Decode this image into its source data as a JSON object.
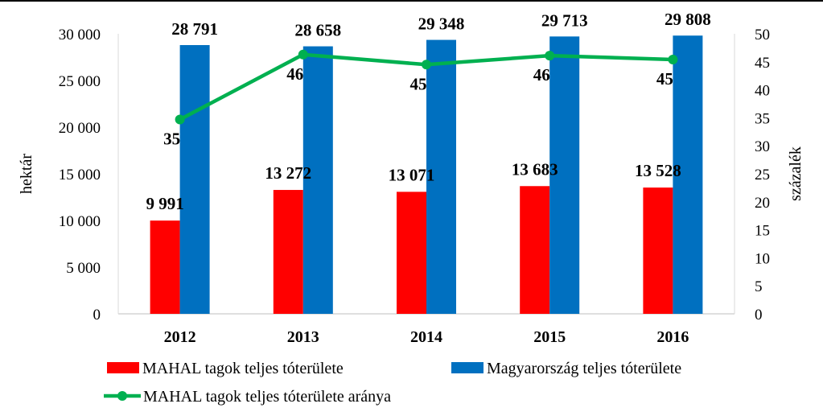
{
  "chart_data": {
    "type": "bar",
    "categories": [
      "2012",
      "2013",
      "2014",
      "2015",
      "2016"
    ],
    "series": [
      {
        "name": "MAHAL tagok teljes tóterülete",
        "kind": "bar",
        "axis": "left",
        "color": "#ff0000",
        "values": [
          9991,
          13272,
          13071,
          13683,
          13528
        ],
        "labels": [
          "9 991",
          "13 272",
          "13 071",
          "13 683",
          "13 528"
        ]
      },
      {
        "name": "Magyarország teljes tóterülete",
        "kind": "bar",
        "axis": "left",
        "color": "#0070c0",
        "values": [
          28791,
          28658,
          29348,
          29713,
          29808
        ],
        "labels": [
          "28 791",
          "28 658",
          "29 348",
          "29 713",
          "29 808"
        ]
      },
      {
        "name": "MAHAL tagok teljes tóterülete aránya",
        "kind": "line",
        "axis": "right",
        "color": "#00b050",
        "values": [
          34.7,
          46.3,
          44.5,
          46.1,
          45.4
        ],
        "labels": [
          "35",
          "46",
          "45",
          "46",
          "45"
        ]
      }
    ],
    "ylabel": "hektár",
    "y2label": "százalék",
    "ylim": [
      0,
      30000
    ],
    "y2lim": [
      0,
      50
    ],
    "yticks": [
      "0",
      "5 000",
      "10 000",
      "15 000",
      "20 000",
      "25 000",
      "30 000"
    ],
    "y2ticks": [
      "0",
      "5",
      "10",
      "15",
      "20",
      "25",
      "30",
      "35",
      "40",
      "45",
      "50"
    ],
    "grid": false,
    "legend_position": "bottom"
  }
}
